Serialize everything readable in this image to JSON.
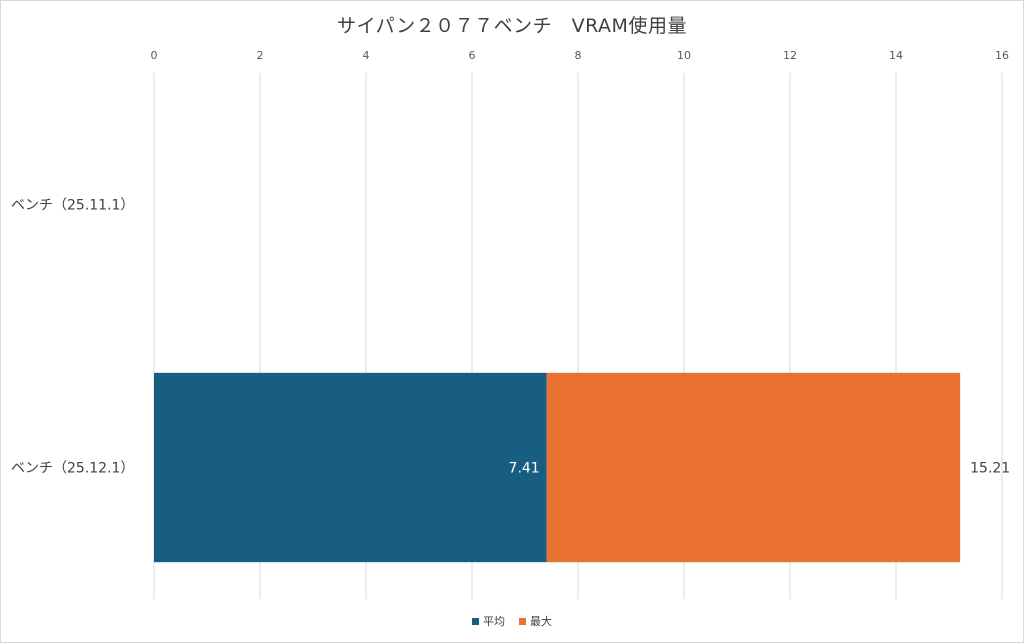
{
  "chart_data": {
    "type": "bar",
    "orientation": "horizontal",
    "title": "サイパン２０７７ベンチ　VRAM使用量",
    "categories": [
      "ベンチ（25.11.1）",
      "ベンチ（25.12.1）"
    ],
    "series": [
      {
        "name": "平均",
        "values": [
          null,
          7.41
        ],
        "color": "#175e82"
      },
      {
        "name": "最大",
        "values": [
          null,
          15.21
        ],
        "color": "#e97132"
      }
    ],
    "data_labels": [
      "7.41",
      "15.21"
    ],
    "xlim": [
      0,
      16
    ],
    "x_ticks": [
      "0",
      "2",
      "4",
      "6",
      "8",
      "10",
      "12",
      "14",
      "16"
    ],
    "grid": true,
    "legend_position": "bottom"
  }
}
